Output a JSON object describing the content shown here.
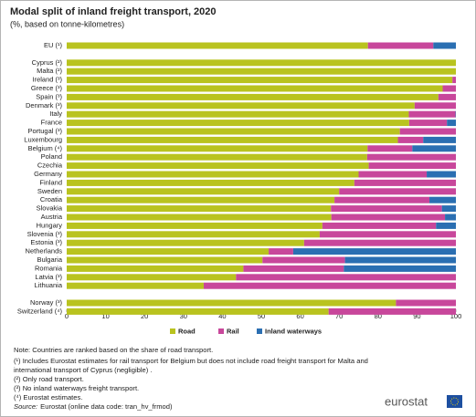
{
  "chart_data": {
    "type": "stacked-bar-horizontal",
    "title": "Modal split of inland freight transport, 2020",
    "subtitle": "(%, based on tonne-kilometres)",
    "categories": [
      "EU (¹)",
      null,
      "Cyprus (²)",
      "Malta (²)",
      "Ireland (³)",
      "Greece (³)",
      "Spain (³)",
      "Denmark (³)",
      "Italy",
      "France",
      "Portugal (³)",
      "Luxembourg",
      "Belgium (⁴)",
      "Poland",
      "Czechia",
      "Germany",
      "Finland",
      "Sweden",
      "Croatia",
      "Slovakia",
      "Austria",
      "Hungary",
      "Slovenia (³)",
      "Estonia (³)",
      "Netherlands",
      "Bulgaria",
      "Romania",
      "Latvia (³)",
      "Lithuania",
      null,
      "Norway (³)",
      "Switzerland (⁴)"
    ],
    "series": [
      {
        "name": "Road",
        "color": "#b9c31f",
        "values": [
          77.4,
          null,
          100,
          100,
          99.1,
          96.6,
          95.5,
          89.4,
          87.9,
          88.0,
          85.6,
          85.1,
          77.3,
          77.2,
          77.6,
          75.0,
          73.9,
          70.0,
          68.8,
          67.9,
          68.0,
          65.7,
          65.0,
          61.0,
          51.9,
          50.3,
          45.4,
          43.5,
          35.2,
          null,
          84.6,
          67.3
        ]
      },
      {
        "name": "Rail",
        "color": "#c8479b",
        "values": [
          16.8,
          null,
          0,
          0,
          0.9,
          3.4,
          4.5,
          10.6,
          12.0,
          9.7,
          14.4,
          6.5,
          11.5,
          22.8,
          22.4,
          17.5,
          26.1,
          30.0,
          24.4,
          28.5,
          29.2,
          29.2,
          35.0,
          39.0,
          6.3,
          21.2,
          25.8,
          56.5,
          64.8,
          null,
          15.4,
          32.7
        ]
      },
      {
        "name": "Inland waterways",
        "color": "#2b6fb2",
        "values": [
          5.8,
          null,
          0,
          0,
          0,
          0,
          0,
          0,
          0.1,
          2.3,
          0,
          8.4,
          11.2,
          0,
          0,
          7.5,
          0,
          0,
          6.8,
          3.6,
          2.8,
          5.1,
          0,
          0,
          41.8,
          28.5,
          28.8,
          0,
          0,
          null,
          0,
          0
        ]
      }
    ],
    "xlim": [
      0,
      100
    ],
    "xticks": [
      0,
      10,
      20,
      30,
      40,
      50,
      60,
      70,
      80,
      90,
      100
    ],
    "notes": [
      "Note: Countries are ranked based on the share of road transport.",
      "(¹) Includes Eurostat estimates for rail transport for Belgium but does not include road freight transport for Malta and international transport of Cyprus (negligible) .",
      "(²) Only road transport.",
      "(³) No inland waterways freight transport.",
      "(⁴) Eurostat estimates."
    ],
    "source_label": "Source:",
    "source": "Eurostat (online data code: tran_hv_frmod)",
    "logo": "eurostat"
  }
}
